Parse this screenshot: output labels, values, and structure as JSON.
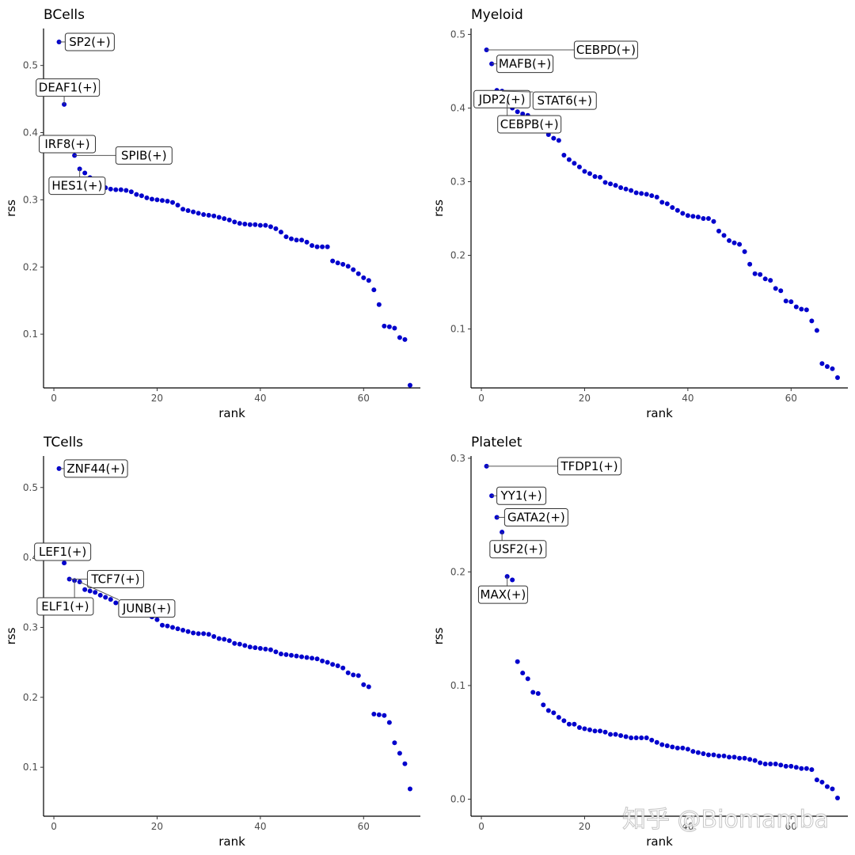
{
  "colors": {
    "point": "#0000cc"
  },
  "watermark": "知乎 @Biomamba",
  "chart_data": [
    {
      "type": "scatter",
      "title": "BCells",
      "xlabel": "rank",
      "ylabel": "rss",
      "xlim": [
        -2,
        71
      ],
      "ylim": [
        0.02,
        0.555
      ],
      "xticks": [
        0,
        20,
        40,
        60
      ],
      "yticks": [
        0.1,
        0.2,
        0.3,
        0.4,
        0.5
      ],
      "ytick_labels": [
        "0.1",
        "0.2",
        "0.3",
        "0.4",
        "0.5"
      ],
      "y": [
        0.535,
        0.442,
        0.373,
        0.366,
        0.346,
        0.34,
        0.333,
        0.327,
        0.322,
        0.318,
        0.316,
        0.315,
        0.315,
        0.314,
        0.312,
        0.308,
        0.306,
        0.303,
        0.301,
        0.3,
        0.299,
        0.298,
        0.296,
        0.292,
        0.286,
        0.284,
        0.282,
        0.28,
        0.278,
        0.277,
        0.276,
        0.274,
        0.272,
        0.27,
        0.267,
        0.265,
        0.264,
        0.263,
        0.263,
        0.262,
        0.262,
        0.26,
        0.257,
        0.252,
        0.245,
        0.242,
        0.24,
        0.24,
        0.237,
        0.232,
        0.23,
        0.23,
        0.23,
        0.209,
        0.206,
        0.204,
        0.201,
        0.196,
        0.19,
        0.184,
        0.18,
        0.166,
        0.144,
        0.112,
        0.111,
        0.109,
        0.095,
        0.092,
        0.024
      ],
      "labels": [
        {
          "text": "SP2(+)",
          "rank": 1,
          "dx": 1.2,
          "dy": 0.0,
          "anchor": "start"
        },
        {
          "text": "DEAF1(+)",
          "rank": 2,
          "dx": 0.7,
          "dy": 0.025,
          "anchor": "middle"
        },
        {
          "text": "IRF8(+)",
          "rank": 3,
          "dx": -0.4,
          "dy": 0.01,
          "anchor": "middle"
        },
        {
          "text": "SPIB(+)",
          "rank": 4,
          "dx": 8.0,
          "dy": 0.0,
          "anchor": "start"
        },
        {
          "text": "HES1(+)",
          "rank": 5,
          "dx": -0.5,
          "dy": -0.025,
          "anchor": "middle"
        }
      ]
    },
    {
      "type": "scatter",
      "title": "Myeloid",
      "xlabel": "rank",
      "ylabel": "rss",
      "xlim": [
        -2,
        71
      ],
      "ylim": [
        0.02,
        0.508
      ],
      "xticks": [
        0,
        20,
        40,
        60
      ],
      "yticks": [
        0.1,
        0.2,
        0.3,
        0.4,
        0.5
      ],
      "ytick_labels": [
        "0.1",
        "0.2",
        "0.3",
        "0.4",
        "0.5"
      ],
      "y": [
        0.479,
        0.46,
        0.424,
        0.423,
        0.41,
        0.4,
        0.395,
        0.392,
        0.39,
        0.387,
        0.379,
        0.37,
        0.364,
        0.359,
        0.356,
        0.336,
        0.33,
        0.325,
        0.32,
        0.314,
        0.311,
        0.307,
        0.306,
        0.299,
        0.297,
        0.295,
        0.292,
        0.29,
        0.288,
        0.285,
        0.284,
        0.283,
        0.281,
        0.279,
        0.272,
        0.27,
        0.265,
        0.261,
        0.257,
        0.254,
        0.253,
        0.252,
        0.25,
        0.25,
        0.246,
        0.233,
        0.227,
        0.22,
        0.217,
        0.215,
        0.205,
        0.188,
        0.175,
        0.174,
        0.168,
        0.166,
        0.155,
        0.152,
        0.138,
        0.137,
        0.13,
        0.127,
        0.126,
        0.111,
        0.098,
        0.053,
        0.049,
        0.046,
        0.034
      ],
      "labels": [
        {
          "text": "CEBPD(+)",
          "rank": 1,
          "dx": 17.0,
          "dy": 0.0,
          "anchor": "start"
        },
        {
          "text": "MAFB(+)",
          "rank": 2,
          "dx": 1.0,
          "dy": 0.0,
          "anchor": "start"
        },
        {
          "text": "JDP2(+)",
          "rank": 3,
          "dx": 1.0,
          "dy": -0.012,
          "anchor": "middle"
        },
        {
          "text": "STAT6(+)",
          "rank": 4,
          "dx": 6.0,
          "dy": -0.013,
          "anchor": "start"
        },
        {
          "text": "CEBPB(+)",
          "rank": 5,
          "dx": 4.3,
          "dy": -0.032,
          "anchor": "middle"
        }
      ]
    },
    {
      "type": "scatter",
      "title": "TCells",
      "xlabel": "rank",
      "ylabel": "rss",
      "xlim": [
        -2,
        71
      ],
      "ylim": [
        0.03,
        0.545
      ],
      "xticks": [
        0,
        20,
        40,
        60
      ],
      "yticks": [
        0.1,
        0.2,
        0.3,
        0.4,
        0.5
      ],
      "ytick_labels": [
        "0.1",
        "0.2",
        "0.3",
        "0.4",
        "0.5"
      ],
      "y": [
        0.527,
        0.392,
        0.369,
        0.367,
        0.365,
        0.354,
        0.352,
        0.35,
        0.346,
        0.343,
        0.34,
        0.335,
        0.331,
        0.328,
        0.325,
        0.322,
        0.32,
        0.318,
        0.315,
        0.311,
        0.303,
        0.302,
        0.3,
        0.298,
        0.296,
        0.294,
        0.292,
        0.291,
        0.291,
        0.29,
        0.287,
        0.284,
        0.283,
        0.281,
        0.277,
        0.276,
        0.274,
        0.272,
        0.271,
        0.27,
        0.269,
        0.268,
        0.265,
        0.262,
        0.261,
        0.26,
        0.259,
        0.258,
        0.257,
        0.256,
        0.255,
        0.252,
        0.25,
        0.247,
        0.245,
        0.242,
        0.235,
        0.232,
        0.231,
        0.218,
        0.215,
        0.176,
        0.175,
        0.174,
        0.164,
        0.135,
        0.12,
        0.105,
        0.069
      ],
      "labels": [
        {
          "text": "ZNF44(+)",
          "rank": 1,
          "dx": 1.0,
          "dy": 0.0,
          "anchor": "start"
        },
        {
          "text": "LEF1(+)",
          "rank": 2,
          "dx": -0.3,
          "dy": 0.016,
          "anchor": "middle"
        },
        {
          "text": "TCF7(+)",
          "rank": 3,
          "dx": 3.5,
          "dy": 0.0,
          "anchor": "start"
        },
        {
          "text": "ELF1(+)",
          "rank": 4,
          "dx": -1.8,
          "dy": -0.037,
          "anchor": "middle"
        },
        {
          "text": "JUNB(+)",
          "rank": 5,
          "dx": 13.0,
          "dy": -0.038,
          "anchor": "middle"
        }
      ]
    },
    {
      "type": "scatter",
      "title": "Platelet",
      "xlabel": "rank",
      "ylabel": "rss",
      "xlim": [
        -2,
        71
      ],
      "ylim": [
        -0.015,
        0.302
      ],
      "xticks": [
        0,
        20,
        40,
        60
      ],
      "yticks": [
        0.0,
        0.1,
        0.2,
        0.3
      ],
      "ytick_labels": [
        "0.0",
        "0.1",
        "0.2",
        "0.3"
      ],
      "y": [
        0.293,
        0.267,
        0.248,
        0.235,
        0.196,
        0.193,
        0.121,
        0.111,
        0.106,
        0.094,
        0.093,
        0.083,
        0.078,
        0.076,
        0.072,
        0.069,
        0.066,
        0.066,
        0.063,
        0.062,
        0.061,
        0.06,
        0.06,
        0.059,
        0.057,
        0.057,
        0.056,
        0.055,
        0.054,
        0.054,
        0.054,
        0.054,
        0.052,
        0.05,
        0.048,
        0.047,
        0.046,
        0.045,
        0.045,
        0.044,
        0.042,
        0.041,
        0.04,
        0.039,
        0.039,
        0.038,
        0.038,
        0.037,
        0.037,
        0.036,
        0.036,
        0.035,
        0.034,
        0.032,
        0.031,
        0.031,
        0.031,
        0.03,
        0.029,
        0.029,
        0.028,
        0.027,
        0.027,
        0.026,
        0.017,
        0.015,
        0.011,
        0.009,
        0.001
      ],
      "labels": [
        {
          "text": "TFDP1(+)",
          "rank": 1,
          "dx": 13.8,
          "dy": 0.0,
          "anchor": "start"
        },
        {
          "text": "YY1(+)",
          "rank": 2,
          "dx": 1.0,
          "dy": 0.0,
          "anchor": "start"
        },
        {
          "text": "GATA2(+)",
          "rank": 3,
          "dx": 1.5,
          "dy": 0.0,
          "anchor": "start"
        },
        {
          "text": "USF2(+)",
          "rank": 4,
          "dx": 3.1,
          "dy": -0.015,
          "anchor": "middle"
        },
        {
          "text": "MAX(+)",
          "rank": 5,
          "dx": -0.8,
          "dy": -0.016,
          "anchor": "middle"
        }
      ]
    }
  ]
}
